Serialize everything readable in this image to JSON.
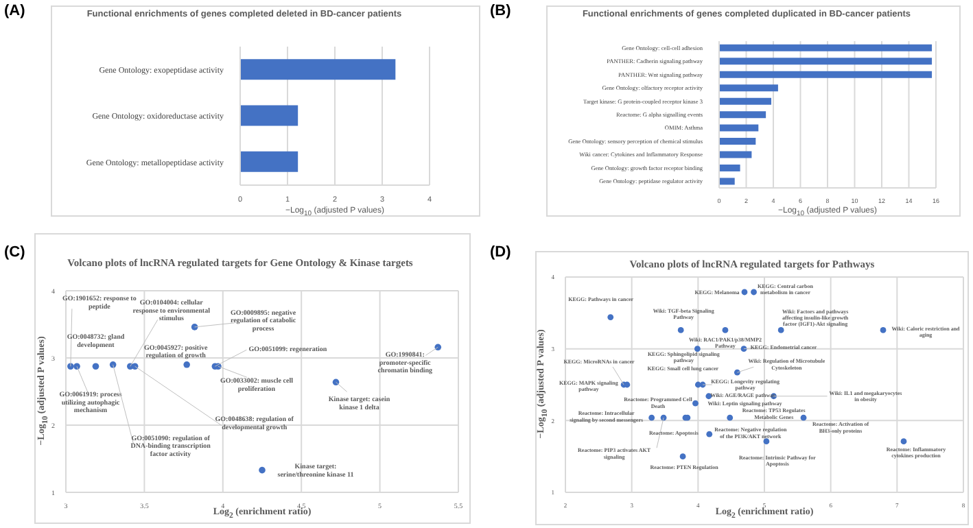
{
  "chart_data": [
    {
      "type": "bar",
      "orientation": "horizontal",
      "title": "Functional enrichments of genes completed deleted in BD-cancer patients",
      "xlabel": "−Log$_{10}$ (adjusted P values)",
      "categories": [
        "Gene Ontology: exopeptidase activity",
        "Gene Ontology: oxidoreductase activity",
        "Gene Ontology: metallopeptidase activity"
      ],
      "values": [
        3.28,
        1.22,
        1.22
      ],
      "color": "#4472c4",
      "xlim": [
        0,
        4
      ],
      "xticks": [
        0,
        1,
        2,
        3,
        4
      ],
      "grid": "x",
      "annotations": [
        "(A)"
      ]
    },
    {
      "type": "bar",
      "orientation": "horizontal",
      "title": "Functional enrichments of genes completed duplicated in BD-cancer patients",
      "xlabel": "−Log$_{10}$ (adjusted P values)",
      "categories": [
        "Gene Ontology: cell-cell adhesion",
        "PANTHER: Cadherin signaling pathway",
        "PANTHER: Wnt signaling pathway",
        "Gene Ontology: olfactory receptor activity",
        "Target kinase: G protein-coupled receptor kinase 3",
        "Reactome: G alpha signalling events",
        "OMIM: Asthma",
        "Gene Ontology: sensory perception of chemical stimulus",
        "Wiki cancer: Cytokines and Inflammatory Response",
        "Gene Ontology: growth factor receptor binding",
        "Gene Ontology: peptidase regulator activity"
      ],
      "values": [
        15.7,
        15.7,
        15.7,
        4.35,
        3.85,
        3.45,
        2.9,
        2.7,
        2.4,
        1.55,
        1.15
      ],
      "color": "#4472c4",
      "xlim": [
        0,
        16
      ],
      "xticks": [
        0,
        2,
        4,
        6,
        8,
        10,
        12,
        14,
        16
      ],
      "grid": "x",
      "annotations": [
        "(B)"
      ]
    },
    {
      "type": "scatter",
      "title": "Volcano plots of lncRNA regulated targets for Gene Ontology & Kinase targets",
      "xlabel": "Log$_{2}$ (enrichment ratio)",
      "ylabel": "−Log$_{10}$ (adjusted P values)",
      "x": [
        3.03,
        3.19,
        3.07,
        3.3,
        3.41,
        3.44,
        3.82,
        3.77,
        3.95,
        3.97,
        4.72,
        4.25,
        5.37
      ],
      "values": [
        2.875,
        2.875,
        2.875,
        2.9,
        2.875,
        2.875,
        3.46,
        2.9,
        2.875,
        2.875,
        2.64,
        1.33,
        3.16
      ],
      "color": "#4472c4",
      "marker": "circle",
      "xlim": [
        3,
        5.5
      ],
      "xticks": [
        3,
        3.5,
        4,
        4.5,
        5,
        5.5
      ],
      "ylim": [
        1,
        4
      ],
      "yticks": [
        1,
        2,
        3,
        4
      ],
      "grid": true,
      "annotations": [
        "(C)",
        {
          "text": "GO:1901652: response to peptide",
          "x": 3.03,
          "y": 2.875
        },
        {
          "text": "GO:0048732: gland development",
          "x": 3.19,
          "y": 2.875
        },
        {
          "text": "GO:0061919: process utilizing autophagic mechanism",
          "x": 3.07,
          "y": 2.875
        },
        {
          "text": "GO:0051090: regulation of DNA-binding transcription factor activity",
          "x": 3.3,
          "y": 2.9
        },
        {
          "text": "GO:0104004: cellular response to environmental stimulus",
          "x": 3.41,
          "y": 2.875
        },
        {
          "text": "GO:0048638: regulation of developmental growth",
          "x": 3.44,
          "y": 2.875
        },
        {
          "text": "GO:0009895: negative regulation of catabolic process",
          "x": 3.82,
          "y": 3.46
        },
        {
          "text": "GO:0045927: positive regulation of growth",
          "x": 3.77,
          "y": 2.9
        },
        {
          "text": "GO:0051099: regeneration",
          "x": 3.95,
          "y": 2.875
        },
        {
          "text": "GO:0033002: muscle cell proliferation",
          "x": 3.97,
          "y": 2.875
        },
        {
          "text": "Kinase target: casein kinase 1 delta",
          "x": 4.72,
          "y": 2.64
        },
        {
          "text": "Kinase target: serine/threonine kinase 11",
          "x": 4.25,
          "y": 1.33
        },
        {
          "text": "GO:1990841: promoter-specific chromatin binding",
          "x": 5.37,
          "y": 3.16
        }
      ]
    },
    {
      "type": "scatter",
      "title": "Volcano plots of lncRNA regulated targets for Pathways",
      "xlabel": "Log$_{2}$ (enrichment ratio)",
      "ylabel": "−Log$_{10}$ (adjusted P values)",
      "x": [
        2.68,
        4.7,
        4.84,
        3.74,
        4.41,
        5.25,
        6.79,
        3.99,
        4.69,
        4.59,
        4.0,
        2.88,
        2.93,
        4.07,
        4.16,
        5.14,
        3.96,
        3.3,
        3.48,
        3.81,
        3.84,
        4.48,
        5.59,
        4.17,
        5.03,
        7.1,
        3.77
      ],
      "values": [
        3.44,
        3.79,
        3.79,
        3.26,
        3.26,
        3.26,
        3.26,
        3.0,
        3.0,
        2.67,
        2.5,
        2.5,
        2.5,
        2.5,
        2.34,
        2.34,
        2.24,
        2.04,
        2.04,
        2.04,
        2.04,
        2.04,
        2.04,
        1.81,
        1.71,
        1.71,
        1.5
      ],
      "color": "#4472c4",
      "marker": "circle",
      "xlim": [
        2,
        8
      ],
      "xticks": [
        2,
        3,
        4,
        5,
        6,
        7,
        8
      ],
      "ylim": [
        1,
        4
      ],
      "yticks": [
        1,
        2,
        3,
        4
      ],
      "grid": true,
      "annotations": [
        "(D)",
        {
          "text": "KEGG: Pathways in cancer",
          "x": 2.68,
          "y": 3.44
        },
        {
          "text": "KEGG: Melanoma",
          "x": 4.7,
          "y": 3.79
        },
        {
          "text": "KEGG: Central carbon metabolism in cancer",
          "x": 4.84,
          "y": 3.79
        },
        {
          "text": "Wiki: TGF-beta Signaling Pathway",
          "x": 3.74,
          "y": 3.26
        },
        {
          "text": "Wiki: RAC1/PAK1/p38/MMP2 Pathway",
          "x": 4.41,
          "y": 3.26
        },
        {
          "text": "Wiki: Factors and pathways affecting insulin-like growth factor (IGF1)-Akt signaling",
          "x": 5.25,
          "y": 3.26
        },
        {
          "text": "Wiki: Caloric restriction and aging",
          "x": 6.79,
          "y": 3.26
        },
        {
          "text": "KEGG: Sphingolipid signaling pathway",
          "x": 3.99,
          "y": 3.0
        },
        {
          "text": "KEGG: Endometrial cancer",
          "x": 4.69,
          "y": 3.0
        },
        {
          "text": "Wiki: Regulation of Microtubule Cytoskeleton",
          "x": 4.59,
          "y": 2.67
        },
        {
          "text": "KEGG: Small cell lung cancer",
          "x": 4.0,
          "y": 2.5
        },
        {
          "text": "KEGG: MicroRNAs in cancer",
          "x": 2.88,
          "y": 2.5
        },
        {
          "text": "KEGG: MAPK signaling pathway",
          "x": 2.93,
          "y": 2.5
        },
        {
          "text": "KEGG: Longevity regulating pathway",
          "x": 4.07,
          "y": 2.5
        },
        {
          "text": "Wiki: AGE/RAGE pathway",
          "x": 4.16,
          "y": 2.34
        },
        {
          "text": "Wiki: IL1 and megakaryocytes in obesity",
          "x": 5.14,
          "y": 2.34
        },
        {
          "text": "Wiki: Leptin signaling pathway",
          "x": 3.96,
          "y": 2.24
        },
        {
          "text": "Reactome: Intracellular signaling by second messengers",
          "x": 3.3,
          "y": 2.04
        },
        {
          "text": "Reactome: PIP3 activates AKT signaling",
          "x": 3.48,
          "y": 2.04
        },
        {
          "text": "Reactome: Programmed Cell Death",
          "x": 3.81,
          "y": 2.04
        },
        {
          "text": "Reactome: Apoptosis",
          "x": 3.84,
          "y": 2.04
        },
        {
          "text": "Reactome: TP53 Regulates Metabolic Genes",
          "x": 4.48,
          "y": 2.04
        },
        {
          "text": "Reactome: Activation of BH3-only proteins",
          "x": 5.59,
          "y": 2.04
        },
        {
          "text": "Reactome: Negative regulation of the PI3K/AKT network",
          "x": 4.17,
          "y": 1.81
        },
        {
          "text": "Reactome: Intrinsic Pathway for Apoptosis",
          "x": 5.03,
          "y": 1.71
        },
        {
          "text": "Reactome: Inflammatory cytokines production",
          "x": 7.1,
          "y": 1.71
        },
        {
          "text": "Reactome: PTEN Regulation",
          "x": 3.77,
          "y": 1.5
        }
      ]
    }
  ]
}
